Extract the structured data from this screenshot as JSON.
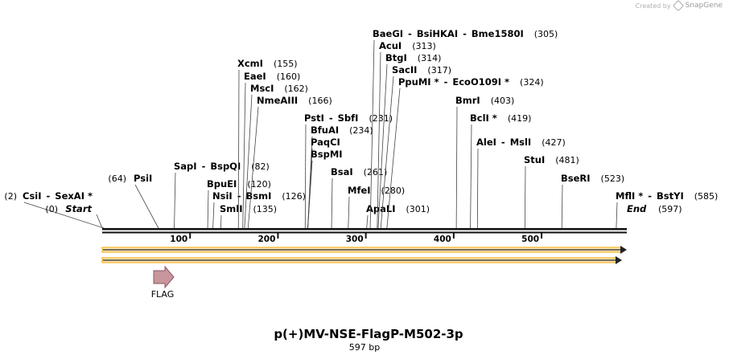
{
  "credit": {
    "text": "Created by",
    "brand": "SnapGene"
  },
  "map": {
    "name": "p(+)MV-NSE-FlagP-M502-3p",
    "length_label": "597 bp",
    "length": 597,
    "start_label": "Start",
    "end_label": "End",
    "start_pos": "(0)",
    "end_pos": "(597)",
    "ticks": [
      "100",
      "200",
      "300",
      "400",
      "500"
    ],
    "feature": {
      "label": "FLAG",
      "color": "#c9969e"
    },
    "strand_color": "#f0a500"
  },
  "sites": [
    {
      "names": [
        "CsiI",
        "SexAI *"
      ],
      "pos": "(2)",
      "bp": 2
    },
    {
      "names": [
        "PsiI"
      ],
      "pos": "(64)",
      "bp": 64
    },
    {
      "names": [
        "SapI",
        "BspQI"
      ],
      "pos": "(82)",
      "bp": 82
    },
    {
      "names": [
        "BpuEI"
      ],
      "pos": "(120)",
      "bp": 120
    },
    {
      "names": [
        "NsiI",
        "BsmI"
      ],
      "pos": "(126)",
      "bp": 126
    },
    {
      "names": [
        "SmlI"
      ],
      "pos": "(135)",
      "bp": 135
    },
    {
      "names": [
        "XcmI"
      ],
      "pos": "(155)",
      "bp": 155
    },
    {
      "names": [
        "EaeI"
      ],
      "pos": "(160)",
      "bp": 160
    },
    {
      "names": [
        "MscI"
      ],
      "pos": "(162)",
      "bp": 162
    },
    {
      "names": [
        "NmeAIII"
      ],
      "pos": "(166)",
      "bp": 166
    },
    {
      "names": [
        "PstI",
        "SbfI"
      ],
      "pos": "(231)",
      "bp": 231
    },
    {
      "names": [
        "BfuAI"
      ],
      "pos": "(234)",
      "bp": 234
    },
    {
      "names": [
        "PaqCI"
      ],
      "pos": "",
      "bp": 234
    },
    {
      "names": [
        "BspMI"
      ],
      "pos": "",
      "bp": 234
    },
    {
      "names": [
        "BsaI"
      ],
      "pos": "(261)",
      "bp": 261
    },
    {
      "names": [
        "MfeI"
      ],
      "pos": "(280)",
      "bp": 280
    },
    {
      "names": [
        "ApaLI"
      ],
      "pos": "(301)",
      "bp": 301
    },
    {
      "names": [
        "BaeGI",
        "BsiHKAI",
        "Bme1580I"
      ],
      "pos": "(305)",
      "bp": 305
    },
    {
      "names": [
        "AcuI"
      ],
      "pos": "(313)",
      "bp": 313
    },
    {
      "names": [
        "BtgI"
      ],
      "pos": "(314)",
      "bp": 314
    },
    {
      "names": [
        "SacII"
      ],
      "pos": "(317)",
      "bp": 317
    },
    {
      "names": [
        "PpuMI *",
        "EcoO109I *"
      ],
      "pos": "(324)",
      "bp": 324
    },
    {
      "names": [
        "BmrI"
      ],
      "pos": "(403)",
      "bp": 403
    },
    {
      "names": [
        "BclI *"
      ],
      "pos": "(419)",
      "bp": 419
    },
    {
      "names": [
        "AleI",
        "MslI"
      ],
      "pos": "(427)",
      "bp": 427
    },
    {
      "names": [
        "StuI"
      ],
      "pos": "(481)",
      "bp": 481
    },
    {
      "names": [
        "BseRI"
      ],
      "pos": "(523)",
      "bp": 523
    },
    {
      "names": [
        "MflI *",
        "BstYI"
      ],
      "pos": "(585)",
      "bp": 585
    }
  ]
}
